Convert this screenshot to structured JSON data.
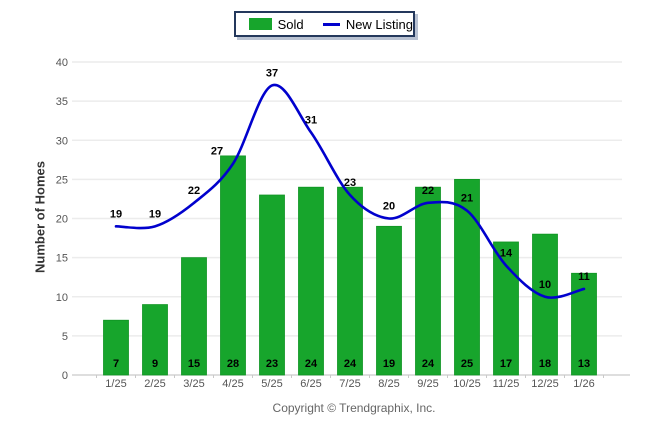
{
  "legend": {
    "sold": "Sold",
    "new_listing": "New Listing"
  },
  "footer": {
    "copyright": "Copyright © Trendgraphix, Inc."
  },
  "colors": {
    "bar": "#17a52c",
    "bar_edge": "#109423",
    "line": "#0101cd",
    "grid": "#ececec",
    "axis": "#c9c9c9",
    "tick_label": "#555555",
    "data_label": "#000000",
    "legend_border": "#24385c",
    "legend_shadow": "#b9c2d2"
  },
  "chart_data": {
    "type": "bar",
    "title": "",
    "xlabel": "",
    "ylabel": "Number of Homes",
    "ylim": [
      0,
      40
    ],
    "ytick_step": 5,
    "grid": true,
    "legend_position": "top-center",
    "categories": [
      "1/25",
      "2/25",
      "3/25",
      "4/25",
      "5/25",
      "6/25",
      "7/25",
      "8/25",
      "9/25",
      "10/25",
      "11/25",
      "12/25",
      "1/26"
    ],
    "series": [
      {
        "name": "Sold",
        "type": "bar",
        "color": "#17a52c",
        "values": [
          7,
          9,
          15,
          28,
          23,
          24,
          24,
          19,
          24,
          25,
          17,
          18,
          13
        ]
      },
      {
        "name": "New Listing",
        "type": "line",
        "color": "#0101cd",
        "values": [
          19,
          19,
          22,
          27,
          37,
          31,
          23,
          20,
          22,
          21,
          14,
          10,
          11
        ]
      }
    ],
    "line_label_dx": [
      0,
      0,
      0,
      -16,
      0,
      0,
      0,
      0,
      0,
      0,
      0,
      0,
      0
    ]
  }
}
